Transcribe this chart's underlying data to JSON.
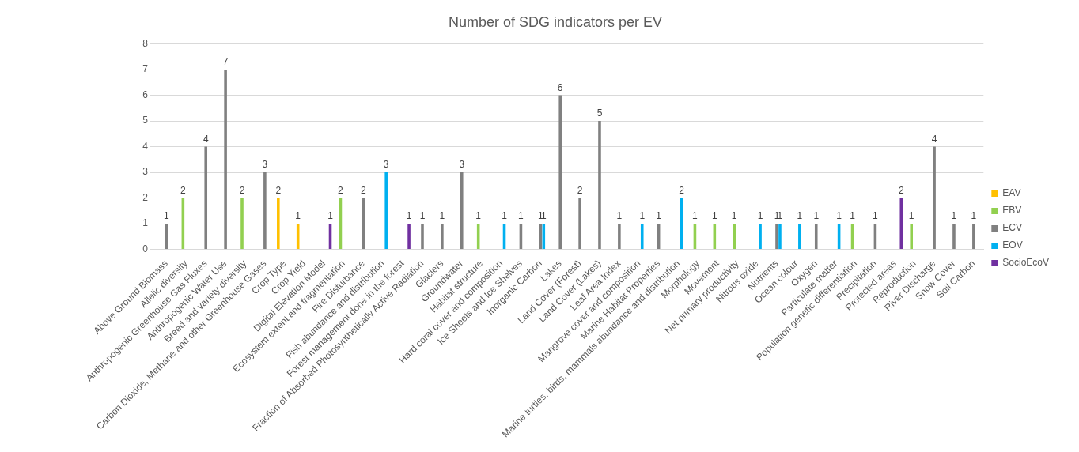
{
  "chart_data": {
    "type": "bar",
    "title": "Number of SDG indicators per EV",
    "categories": [
      "Above Ground Biomass",
      "Allelic diversity",
      "Anthropogenic Greenhouse Gas Fluxes",
      "Anthropogenic Water Use",
      "Breed and variety diversity",
      "Carbon Dioxide, Methane and other Greenhouse Gases",
      "Crop Type",
      "Crop Yield",
      "Digital Elevation Model",
      "Ecosystem extent and fragmentation",
      "Fire Disturbance",
      "Fish abundance and distribution",
      "Forest management done in the forest",
      "Fraction of Absorbed Photosynthetically Active Radiation",
      "Glaciers",
      "Groundwater",
      "Habitat structure",
      "Hard coral cover and composition",
      "Ice Sheets and Ice Shelves",
      "Inorganic Carbon",
      "Lakes",
      "Land Cover (Forest)",
      "Land Cover (Lakes)",
      "Leaf Area Index",
      "Mangrove cover and composition",
      "Marine Habitat Properties",
      "Marine turtles, birds, mammals abundance and distribution",
      "Morphology",
      "Movement",
      "Net primary productivity",
      "Nitrous oxide",
      "Nutrients",
      "Ocean colour",
      "Oxygen",
      "Particulate matter",
      "Population genetic differentiation",
      "Precipitation",
      "Protected areas",
      "Reproduction",
      "River Discharge",
      "Snow Cover",
      "Soil Carbon"
    ],
    "series": [
      {
        "name": "EAV",
        "color": "#ffc000",
        "values": [
          null,
          null,
          null,
          null,
          null,
          null,
          2,
          1,
          null,
          null,
          null,
          null,
          null,
          null,
          null,
          null,
          null,
          null,
          null,
          null,
          null,
          null,
          null,
          null,
          null,
          null,
          null,
          null,
          null,
          null,
          null,
          null,
          null,
          null,
          null,
          null,
          null,
          null,
          null,
          null,
          null,
          null
        ]
      },
      {
        "name": "EBV",
        "color": "#92d050",
        "values": [
          null,
          2,
          null,
          null,
          2,
          null,
          null,
          null,
          null,
          2,
          null,
          null,
          null,
          null,
          null,
          null,
          1,
          null,
          null,
          null,
          null,
          null,
          null,
          null,
          null,
          null,
          null,
          1,
          1,
          1,
          null,
          null,
          null,
          null,
          null,
          1,
          null,
          null,
          1,
          null,
          null,
          null
        ]
      },
      {
        "name": "ECV",
        "color": "#808080",
        "values": [
          1,
          null,
          4,
          7,
          null,
          3,
          null,
          null,
          null,
          null,
          2,
          null,
          null,
          1,
          1,
          3,
          null,
          null,
          1,
          1,
          6,
          2,
          5,
          1,
          null,
          1,
          null,
          null,
          null,
          null,
          null,
          1,
          null,
          1,
          null,
          null,
          1,
          null,
          null,
          4,
          1,
          1
        ]
      },
      {
        "name": "EOV",
        "color": "#00b0f0",
        "values": [
          null,
          null,
          null,
          null,
          null,
          null,
          null,
          null,
          null,
          null,
          null,
          3,
          null,
          null,
          null,
          null,
          null,
          1,
          null,
          1,
          null,
          null,
          null,
          null,
          1,
          null,
          2,
          null,
          null,
          null,
          1,
          1,
          1,
          null,
          1,
          null,
          null,
          null,
          null,
          null,
          null,
          null
        ]
      },
      {
        "name": "SocioEcoV",
        "color": "#7030a0",
        "values": [
          null,
          null,
          null,
          null,
          null,
          null,
          null,
          null,
          1,
          null,
          null,
          null,
          1,
          null,
          null,
          null,
          null,
          null,
          null,
          null,
          null,
          null,
          null,
          null,
          null,
          null,
          null,
          null,
          null,
          null,
          null,
          null,
          null,
          null,
          null,
          null,
          null,
          2,
          null,
          null,
          null,
          null
        ]
      }
    ],
    "ylim": [
      0,
      8
    ],
    "yticks": [
      0,
      1,
      2,
      3,
      4,
      5,
      6,
      7,
      8
    ],
    "grid": "y",
    "legend": "right",
    "data_labels": true
  }
}
